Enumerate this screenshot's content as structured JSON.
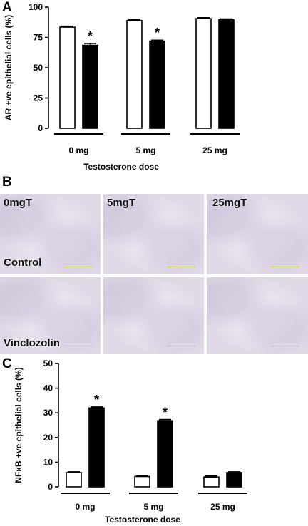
{
  "panels": {
    "a": "A",
    "b": "B",
    "c": "C"
  },
  "chart_data": [
    {
      "type": "bar",
      "categories": [
        "0 mg",
        "5 mg",
        "25 mg"
      ],
      "series": [
        {
          "name": "",
          "values": [
            83.5,
            89,
            90.5
          ],
          "errors": [
            0.8,
            0.8,
            0.8
          ],
          "color": "#ffffff"
        },
        {
          "name": "",
          "values": [
            68.5,
            72,
            89.5
          ],
          "errors": [
            1.5,
            0.8,
            0.8
          ],
          "color": "#000000"
        }
      ],
      "significance": [
        "*",
        "*",
        ""
      ],
      "ylabel": "AR +ve epithelial cells (%)",
      "xlabel": "Testosterone dose",
      "ylim": [
        0,
        100
      ],
      "yticks": [
        "0",
        "25",
        "50",
        "75",
        "100"
      ],
      "legend": "none",
      "grid": false
    },
    {
      "type": "bar",
      "categories": [
        "0 mg",
        "5 mg",
        "25 mg"
      ],
      "series": [
        {
          "name": "",
          "values": [
            5.8,
            4.2,
            4.0
          ],
          "errors": [
            0.3,
            0.2,
            0.4
          ],
          "color": "#ffffff"
        },
        {
          "name": "",
          "values": [
            32,
            26.8,
            5.8
          ],
          "errors": [
            0.4,
            0.5,
            0.3
          ],
          "color": "#000000"
        }
      ],
      "significance": [
        "*",
        "*",
        ""
      ],
      "ylabel": "NFκB +ve epithelial cells (%)",
      "xlabel": "Testosterone dose",
      "ylim": [
        0,
        50
      ],
      "yticks": [
        "0",
        "10",
        "20",
        "30",
        "40",
        "50"
      ],
      "legend": "none",
      "grid": false
    }
  ],
  "micrographs": {
    "top_labels": [
      "0mgT",
      "5mgT",
      "25mgT"
    ],
    "row_labels": [
      "Control",
      "Vinclozolin"
    ]
  }
}
